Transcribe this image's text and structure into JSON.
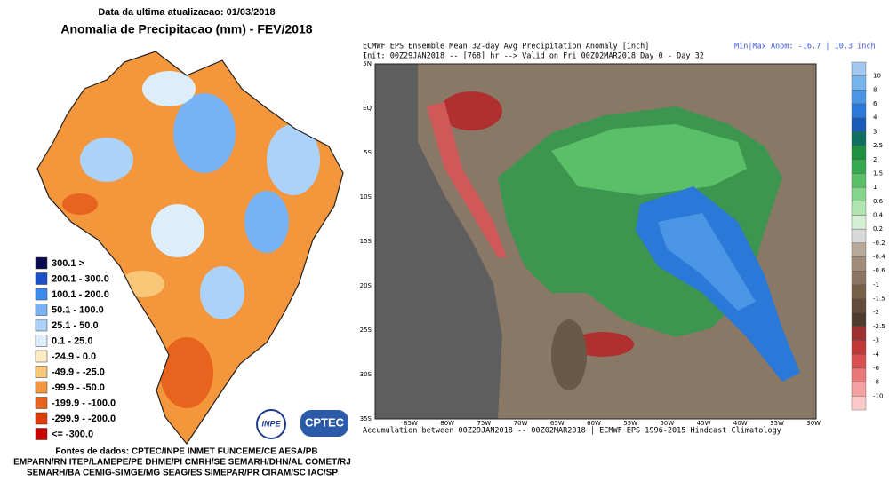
{
  "left": {
    "updated": "Data da ultima atualizacao: 01/03/2018",
    "title": "Anomalia de Precipitacao (mm) - FEV/2018",
    "legend": [
      {
        "label": "300.1 >",
        "color": "#0a0a50"
      },
      {
        "label": "200.1 - 300.0",
        "color": "#1e50c8"
      },
      {
        "label": "100.1 - 200.0",
        "color": "#3c8cf0"
      },
      {
        "label": "50.1 - 100.0",
        "color": "#78b4f5"
      },
      {
        "label": "25.1 - 50.0",
        "color": "#aad2fa"
      },
      {
        "label": "0.1 - 25.0",
        "color": "#dceefc"
      },
      {
        "label": "-24.9 - 0.0",
        "color": "#fcebc0"
      },
      {
        "label": "-49.9 - -25.0",
        "color": "#f8c878"
      },
      {
        "label": "-99.9 - -50.0",
        "color": "#f4963c"
      },
      {
        "label": "-199.9 - -100.0",
        "color": "#e8641e"
      },
      {
        "label": "-299.9 - -200.0",
        "color": "#e03c0a"
      },
      {
        "label": "<= -300.0",
        "color": "#c80000"
      }
    ],
    "logo_left": "INPE",
    "logo_right": "CPTEC",
    "sources": [
      "Fontes de dados: CPTEC/INPE INMET FUNCEME/CE AESA/PB",
      "EMPARN/RN ITEP/LAMEPE/PE DHME/PI CMRH/SE SEMARH/DHN/AL COMET/RJ",
      "SEMARH/BA CEMIG-SIMGE/MG SEAG/ES SIMEPAR/PR CIRAM/SC IAC/SP"
    ]
  },
  "right": {
    "title": "ECMWF EPS Ensemble Mean 32-day Avg Precipitation Anomaly [inch]",
    "init": "Init: 00Z29JAN2018 -- [768] hr --> Valid on Fri 00Z02MAR2018  Day 0 - Day 32",
    "minmax": "Min|Max Anom: -16.7 | 10.3 inch",
    "lat_labels": [
      "5N",
      "EQ",
      "5S",
      "10S",
      "15S",
      "20S",
      "25S",
      "30S",
      "35S"
    ],
    "lon_labels": [
      "85W",
      "80W",
      "75W",
      "70W",
      "65W",
      "60W",
      "55W",
      "50W",
      "45W",
      "40W",
      "35W",
      "30W"
    ],
    "footer": "Accumulation between 00Z29JAN2018 -- 00Z02MAR2018 | ECMWF EPS 1996-2015 Hindcast Climatology",
    "colorbar_labels": [
      "10",
      "8",
      "6",
      "4",
      "3",
      "2.5",
      "2",
      "1.5",
      "1",
      "0.6",
      "0.4",
      "0.2",
      "-0.2",
      "-0.4",
      "-0.6",
      "-1",
      "-1.5",
      "-2",
      "-2.5",
      "-3",
      "-4",
      "-6",
      "-8",
      "-10"
    ],
    "colorbar_colors": [
      "#a0c8f0",
      "#78b4ec",
      "#4a96e4",
      "#2a78d8",
      "#1a5ab8",
      "#107060",
      "#1e9040",
      "#36a850",
      "#5ac068",
      "#86d48c",
      "#b0e4b0",
      "#d4f0d4",
      "#d8d8d8",
      "#b8a898",
      "#a08c78",
      "#8c7460",
      "#786048",
      "#644c38",
      "#503c2c",
      "#a03030",
      "#c03838",
      "#d85050",
      "#e87878",
      "#f4a0a0",
      "#fcc8c8"
    ]
  }
}
